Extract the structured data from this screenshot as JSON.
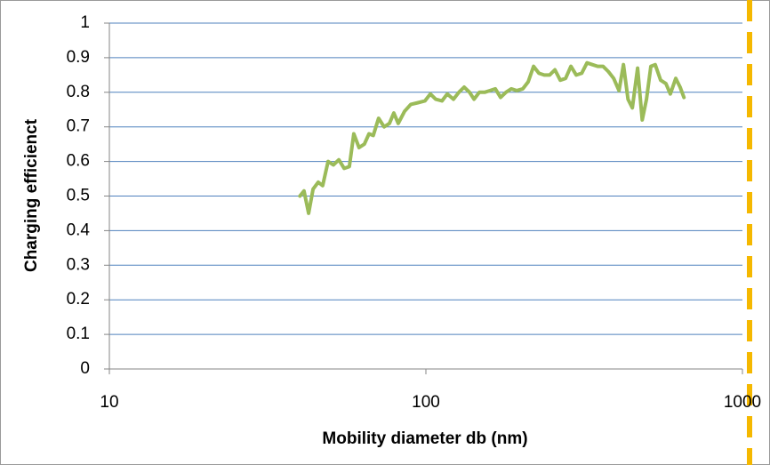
{
  "chart_data": {
    "type": "line",
    "xlabel": "Mobility diameter db (nm)",
    "ylabel": "Charging efficienct",
    "xscale": "log",
    "xlim": [
      10,
      1000
    ],
    "xticks": [
      10,
      100,
      1000
    ],
    "ylim": [
      0,
      1
    ],
    "yticks": [
      0,
      0.1,
      0.2,
      0.3,
      0.4,
      0.5,
      0.6,
      0.7,
      0.8,
      0.9,
      1
    ],
    "grid": true,
    "series": [
      {
        "name": "Charging efficienct",
        "color": "#9bbb59",
        "x": [
          40,
          41.2,
          42.6,
          44,
          45.7,
          47.2,
          49.1,
          51,
          53.1,
          55.2,
          57.3,
          59.2,
          61.5,
          63.9,
          66.1,
          68.2,
          70.9,
          73.8,
          76.7,
          79.2,
          81.8,
          85.6,
          89.6,
          94.4,
          99.3,
          103.3,
          107.4,
          112.4,
          116.8,
          122.2,
          127.1,
          132.1,
          137.4,
          141.9,
          147.5,
          153.3,
          159.4,
          165.7,
          172.2,
          179,
          186.1,
          193.5,
          202.4,
          210.4,
          218.8,
          227.5,
          236.5,
          245.9,
          255.6,
          265.7,
          276.3,
          287.2,
          298.6,
          310.5,
          322.8,
          335.6,
          348.9,
          362.7,
          377.1,
          392,
          407.6,
          420.9,
          434.9,
          449.1,
          466.4,
          482.3,
          497.6,
          513.6,
          530.2,
          551.6,
          573.3,
          591.9,
          615.6,
          635.6,
          653.3
        ],
        "values": [
          0.5,
          0.515,
          0.45,
          0.52,
          0.54,
          0.53,
          0.6,
          0.59,
          0.605,
          0.58,
          0.585,
          0.68,
          0.64,
          0.65,
          0.68,
          0.675,
          0.725,
          0.7,
          0.71,
          0.74,
          0.71,
          0.745,
          0.765,
          0.77,
          0.775,
          0.795,
          0.78,
          0.775,
          0.795,
          0.78,
          0.8,
          0.815,
          0.8,
          0.78,
          0.8,
          0.8,
          0.805,
          0.81,
          0.785,
          0.8,
          0.81,
          0.805,
          0.81,
          0.83,
          0.875,
          0.855,
          0.85,
          0.85,
          0.865,
          0.835,
          0.84,
          0.875,
          0.85,
          0.855,
          0.885,
          0.88,
          0.875,
          0.875,
          0.86,
          0.84,
          0.805,
          0.88,
          0.78,
          0.755,
          0.87,
          0.72,
          0.78,
          0.875,
          0.88,
          0.835,
          0.825,
          0.795,
          0.84,
          0.815,
          0.785
        ]
      }
    ]
  }
}
